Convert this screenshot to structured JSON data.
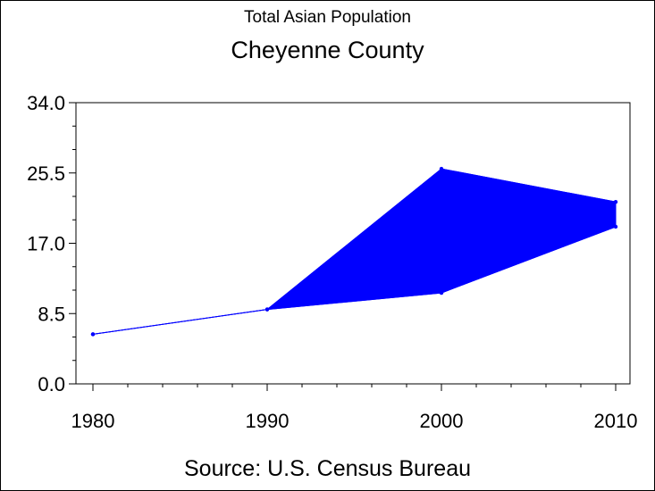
{
  "chart_data": {
    "type": "area",
    "title": "Total Asian Population",
    "subtitle": "Cheyenne County",
    "source": "Source: U.S. Census Bureau",
    "x": [
      1980,
      1990,
      2000,
      2010
    ],
    "x_tick_labels": [
      "1980",
      "1990",
      "2000",
      "2010"
    ],
    "y_tick_labels": [
      "0.0",
      "8.5",
      "17.0",
      "25.5",
      "34.0"
    ],
    "y_ticks": [
      0,
      8.5,
      17,
      25.5,
      34
    ],
    "ylim": [
      0,
      34
    ],
    "xlim": [
      1980,
      2010
    ],
    "series": [
      {
        "role": "upper",
        "values": [
          6,
          9,
          26,
          22
        ]
      },
      {
        "role": "lower",
        "values": [
          6,
          9,
          11,
          19
        ]
      }
    ],
    "fill_color": "#0000ff",
    "line_color": "#0000ff",
    "grid": false
  }
}
